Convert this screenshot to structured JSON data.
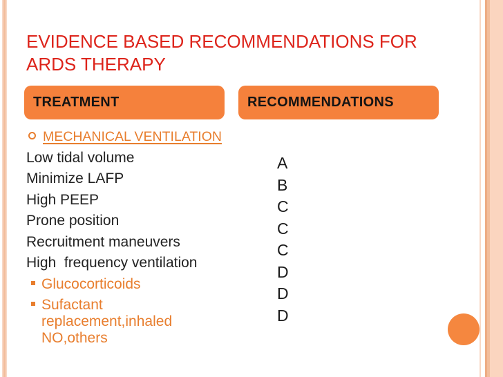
{
  "slide": {
    "title": "EVIDENCE BASED RECOMMENDATIONS FOR ARDS THERAPY",
    "treatment_header": "TREATMENT",
    "recommendations_header": "RECOMMENDATIONS",
    "treatment_items": [
      {
        "text": "MECHANICAL VENTILATION",
        "bullet": "circle-outline",
        "emphasis": "orange-underline"
      },
      {
        "text": "Low tidal volume",
        "bullet": "none",
        "emphasis": "plain"
      },
      {
        "text": "Minimize LAFP",
        "bullet": "none",
        "emphasis": "plain"
      },
      {
        "text": "High PEEP",
        "bullet": "none",
        "emphasis": "plain"
      },
      {
        "text": "Prone position",
        "bullet": "none",
        "emphasis": "plain"
      },
      {
        "text": "Recruitment maneuvers",
        "bullet": "none",
        "emphasis": "plain"
      },
      {
        "text": "High  frequency ventilation",
        "bullet": "none",
        "emphasis": "plain"
      },
      {
        "text": "Glucocorticoids",
        "bullet": "square",
        "emphasis": "orange"
      },
      {
        "text": "Sufactant replacement,inhaled NO,others",
        "bullet": "square",
        "emphasis": "orange"
      }
    ],
    "recommendation_grades": [
      "A",
      "B",
      "C",
      "C",
      "C",
      "D",
      "D",
      "D"
    ],
    "colors": {
      "title_red": "#DD241B",
      "header_box": "#F5813C",
      "accent_orange": "#E87E2E",
      "circle_orange": "#F5873F",
      "border_light": "#F8D8C5",
      "border_mid": "#F2BD9C",
      "border_dark": "#EDAC84",
      "border_strip": "#FBD5BF"
    }
  }
}
